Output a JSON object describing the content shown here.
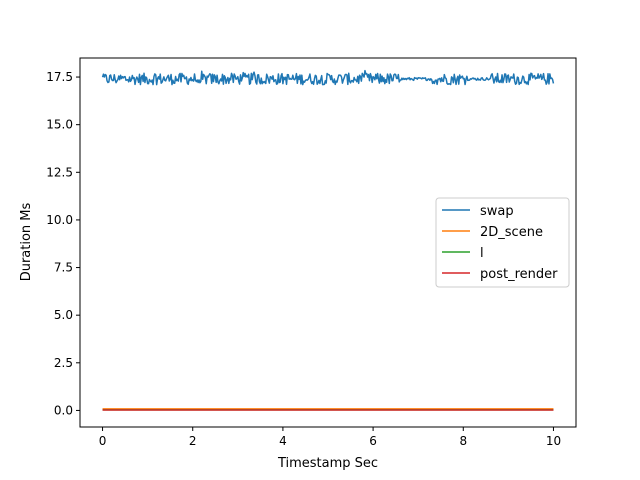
{
  "chart_data": {
    "type": "line",
    "title": "",
    "xlabel": "Timestamp Sec",
    "ylabel": "Duration Ms",
    "xlim": [
      -0.5,
      10.5
    ],
    "ylim": [
      -0.87,
      18.5
    ],
    "x_ticks": [
      0,
      2,
      4,
      6,
      8,
      10
    ],
    "x_tick_labels": [
      "0",
      "2",
      "4",
      "6",
      "8",
      "10"
    ],
    "y_ticks": [
      0.0,
      2.5,
      5.0,
      7.5,
      10.0,
      12.5,
      15.0,
      17.5
    ],
    "y_tick_labels": [
      "0.0",
      "2.5",
      "5.0",
      "7.5",
      "10.0",
      "12.5",
      "15.0",
      "17.5"
    ],
    "grid": false,
    "legend_position": "center-right",
    "series": [
      {
        "name": "swap",
        "color": "#1f77b4",
        "sample_interval_sec": 0.02,
        "x_start": 0,
        "x_end": 10,
        "baseline": 17.4,
        "noise_amplitude": 0.3,
        "quiet_intervals": [
          [
            6.6,
            7.3
          ],
          [
            8.1,
            8.6
          ]
        ]
      },
      {
        "name": "2D_scene",
        "color": "#ff7f0e",
        "x": [
          0,
          10
        ],
        "values": [
          0.08,
          0.08
        ]
      },
      {
        "name": "l",
        "color": "#2ca02c",
        "x": [
          0,
          10
        ],
        "values": [
          0.03,
          0.03
        ]
      },
      {
        "name": "post_render",
        "color": "#d62728",
        "x": [
          0,
          10
        ],
        "values": [
          0.02,
          0.02
        ]
      }
    ]
  }
}
